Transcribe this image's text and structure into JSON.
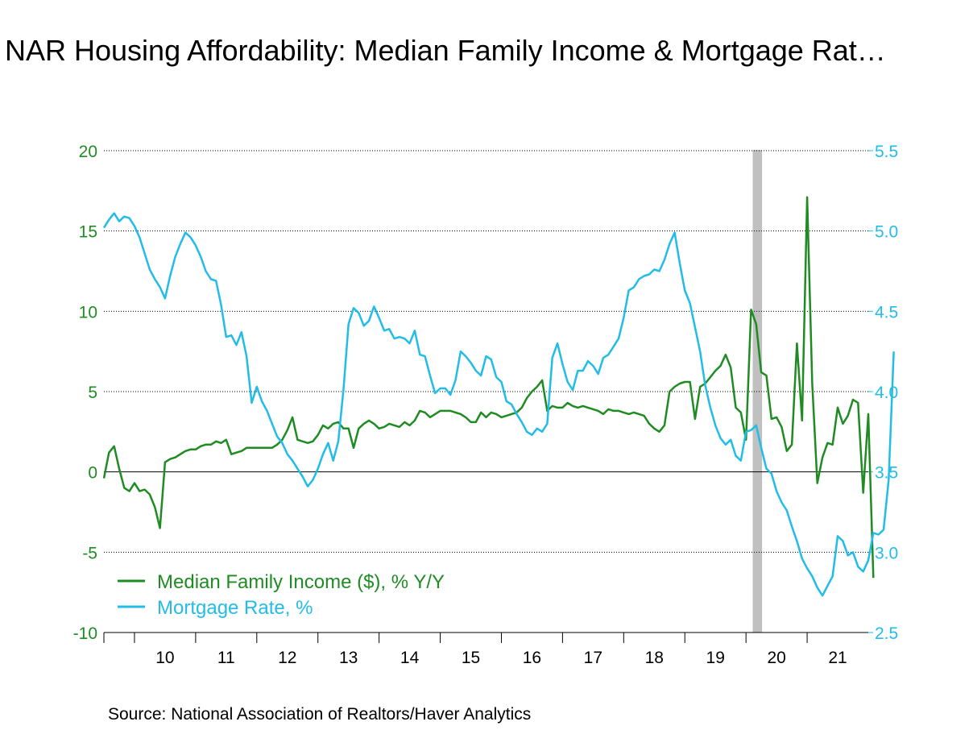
{
  "title": "NAR Housing Affordability: Median Family Income & Mortgage Rat…",
  "source": "Source:  National Association of Realtors/Haver Analytics",
  "colors": {
    "income": "#1e8c22",
    "mortgage": "#22bce8",
    "recession": "#c0c0c0"
  },
  "chart_data": {
    "type": "line",
    "frequency": "monthly",
    "x_start": "2009-07",
    "x_end": "2022-01",
    "x_tick_labels": [
      "10",
      "11",
      "12",
      "13",
      "14",
      "15",
      "16",
      "17",
      "18",
      "19",
      "20",
      "21"
    ],
    "y_left": {
      "range": [
        -10,
        20
      ],
      "ticks": [
        20,
        15,
        10,
        5,
        0,
        -5,
        -10
      ],
      "tick_labels": [
        "20",
        "15",
        "10",
        "5",
        "0",
        "-5",
        "-10"
      ]
    },
    "y_right": {
      "range": [
        2.5,
        5.5
      ],
      "ticks": [
        5.5,
        5.0,
        4.5,
        4.0,
        3.5,
        3.0,
        2.5
      ],
      "tick_labels": [
        "5.5",
        "5.0",
        "4.5",
        "4.0",
        "3.5",
        "3.0",
        "2.5"
      ]
    },
    "gridlines": "dotted horizontal",
    "recession_shading": {
      "start": "2020-02",
      "end": "2020-04"
    },
    "legend_placement": "bottom-left",
    "series": [
      {
        "name": "Median Family Income ($), % Y/Y",
        "axis": "left",
        "values": [
          -0.4,
          1.2,
          1.6,
          0.2,
          -1.0,
          -1.2,
          -0.7,
          -1.2,
          -1.1,
          -1.4,
          -2.2,
          -3.5,
          0.6,
          0.8,
          0.9,
          1.1,
          1.3,
          1.4,
          1.4,
          1.6,
          1.7,
          1.7,
          1.9,
          1.8,
          2.0,
          1.1,
          1.2,
          1.3,
          1.5,
          1.5,
          1.5,
          1.5,
          1.5,
          1.5,
          1.7,
          2.0,
          2.6,
          3.4,
          2.0,
          1.9,
          1.8,
          1.9,
          2.3,
          2.9,
          2.7,
          3.0,
          3.1,
          2.7,
          2.7,
          1.5,
          2.7,
          3.0,
          3.2,
          3.0,
          2.7,
          2.8,
          3.0,
          2.9,
          2.8,
          3.1,
          2.9,
          3.2,
          3.8,
          3.7,
          3.4,
          3.6,
          3.8,
          3.8,
          3.8,
          3.7,
          3.6,
          3.4,
          3.1,
          3.1,
          3.7,
          3.4,
          3.7,
          3.6,
          3.4,
          3.5,
          3.6,
          3.7,
          4.0,
          4.6,
          5.0,
          5.3,
          5.7,
          3.8,
          4.1,
          4.0,
          4.0,
          4.3,
          4.1,
          4.0,
          4.1,
          4.0,
          3.9,
          3.8,
          3.6,
          3.9,
          3.8,
          3.8,
          3.7,
          3.6,
          3.7,
          3.6,
          3.5,
          3.0,
          2.7,
          2.5,
          2.9,
          5.0,
          5.3,
          5.5,
          5.6,
          5.6,
          3.3,
          5.3,
          5.5,
          5.9,
          6.3,
          6.6,
          7.3,
          6.5,
          4.0,
          3.7,
          2.0,
          10.1,
          9.2,
          6.2,
          6.0,
          3.3,
          3.4,
          2.8,
          1.3,
          1.7,
          8.0,
          3.2,
          17.1,
          5.5,
          -0.7,
          0.9,
          1.8,
          1.7,
          4.0,
          3.0,
          3.5,
          4.5,
          4.3,
          -1.3,
          3.6,
          -6.6
        ]
      },
      {
        "name": "Mortgage Rate, %",
        "axis": "right",
        "values": [
          5.02,
          5.07,
          5.11,
          5.06,
          5.09,
          5.08,
          5.03,
          4.96,
          4.86,
          4.76,
          4.7,
          4.65,
          4.58,
          4.72,
          4.84,
          4.92,
          4.99,
          4.96,
          4.91,
          4.84,
          4.75,
          4.7,
          4.69,
          4.54,
          4.34,
          4.35,
          4.29,
          4.37,
          4.22,
          3.93,
          4.03,
          3.94,
          3.88,
          3.8,
          3.72,
          3.68,
          3.61,
          3.57,
          3.52,
          3.47,
          3.41,
          3.45,
          3.52,
          3.61,
          3.68,
          3.57,
          3.69,
          4.01,
          4.42,
          4.52,
          4.49,
          4.41,
          4.44,
          4.53,
          4.46,
          4.38,
          4.39,
          4.33,
          4.34,
          4.33,
          4.3,
          4.38,
          4.23,
          4.22,
          4.1,
          3.99,
          4.02,
          4.02,
          3.98,
          4.07,
          4.25,
          4.22,
          4.18,
          4.13,
          4.1,
          4.22,
          4.2,
          4.09,
          4.06,
          3.94,
          3.92,
          3.86,
          3.81,
          3.75,
          3.73,
          3.77,
          3.75,
          3.8,
          4.21,
          4.3,
          4.17,
          4.06,
          4.01,
          4.13,
          4.13,
          4.19,
          4.16,
          4.11,
          4.21,
          4.23,
          4.28,
          4.33,
          4.46,
          4.63,
          4.65,
          4.7,
          4.72,
          4.73,
          4.76,
          4.75,
          4.82,
          4.92,
          4.99,
          4.8,
          4.63,
          4.55,
          4.4,
          4.25,
          4.04,
          3.9,
          3.79,
          3.71,
          3.67,
          3.7,
          3.6,
          3.57,
          3.75,
          3.76,
          3.79,
          3.65,
          3.52,
          3.49,
          3.38,
          3.31,
          3.26,
          3.16,
          3.07,
          2.96,
          2.9,
          2.85,
          2.78,
          2.73,
          2.79,
          2.85,
          3.1,
          3.07,
          2.98,
          3.0,
          2.91,
          2.88,
          2.95,
          3.12,
          3.11,
          3.14,
          3.45,
          4.25
        ]
      }
    ]
  }
}
